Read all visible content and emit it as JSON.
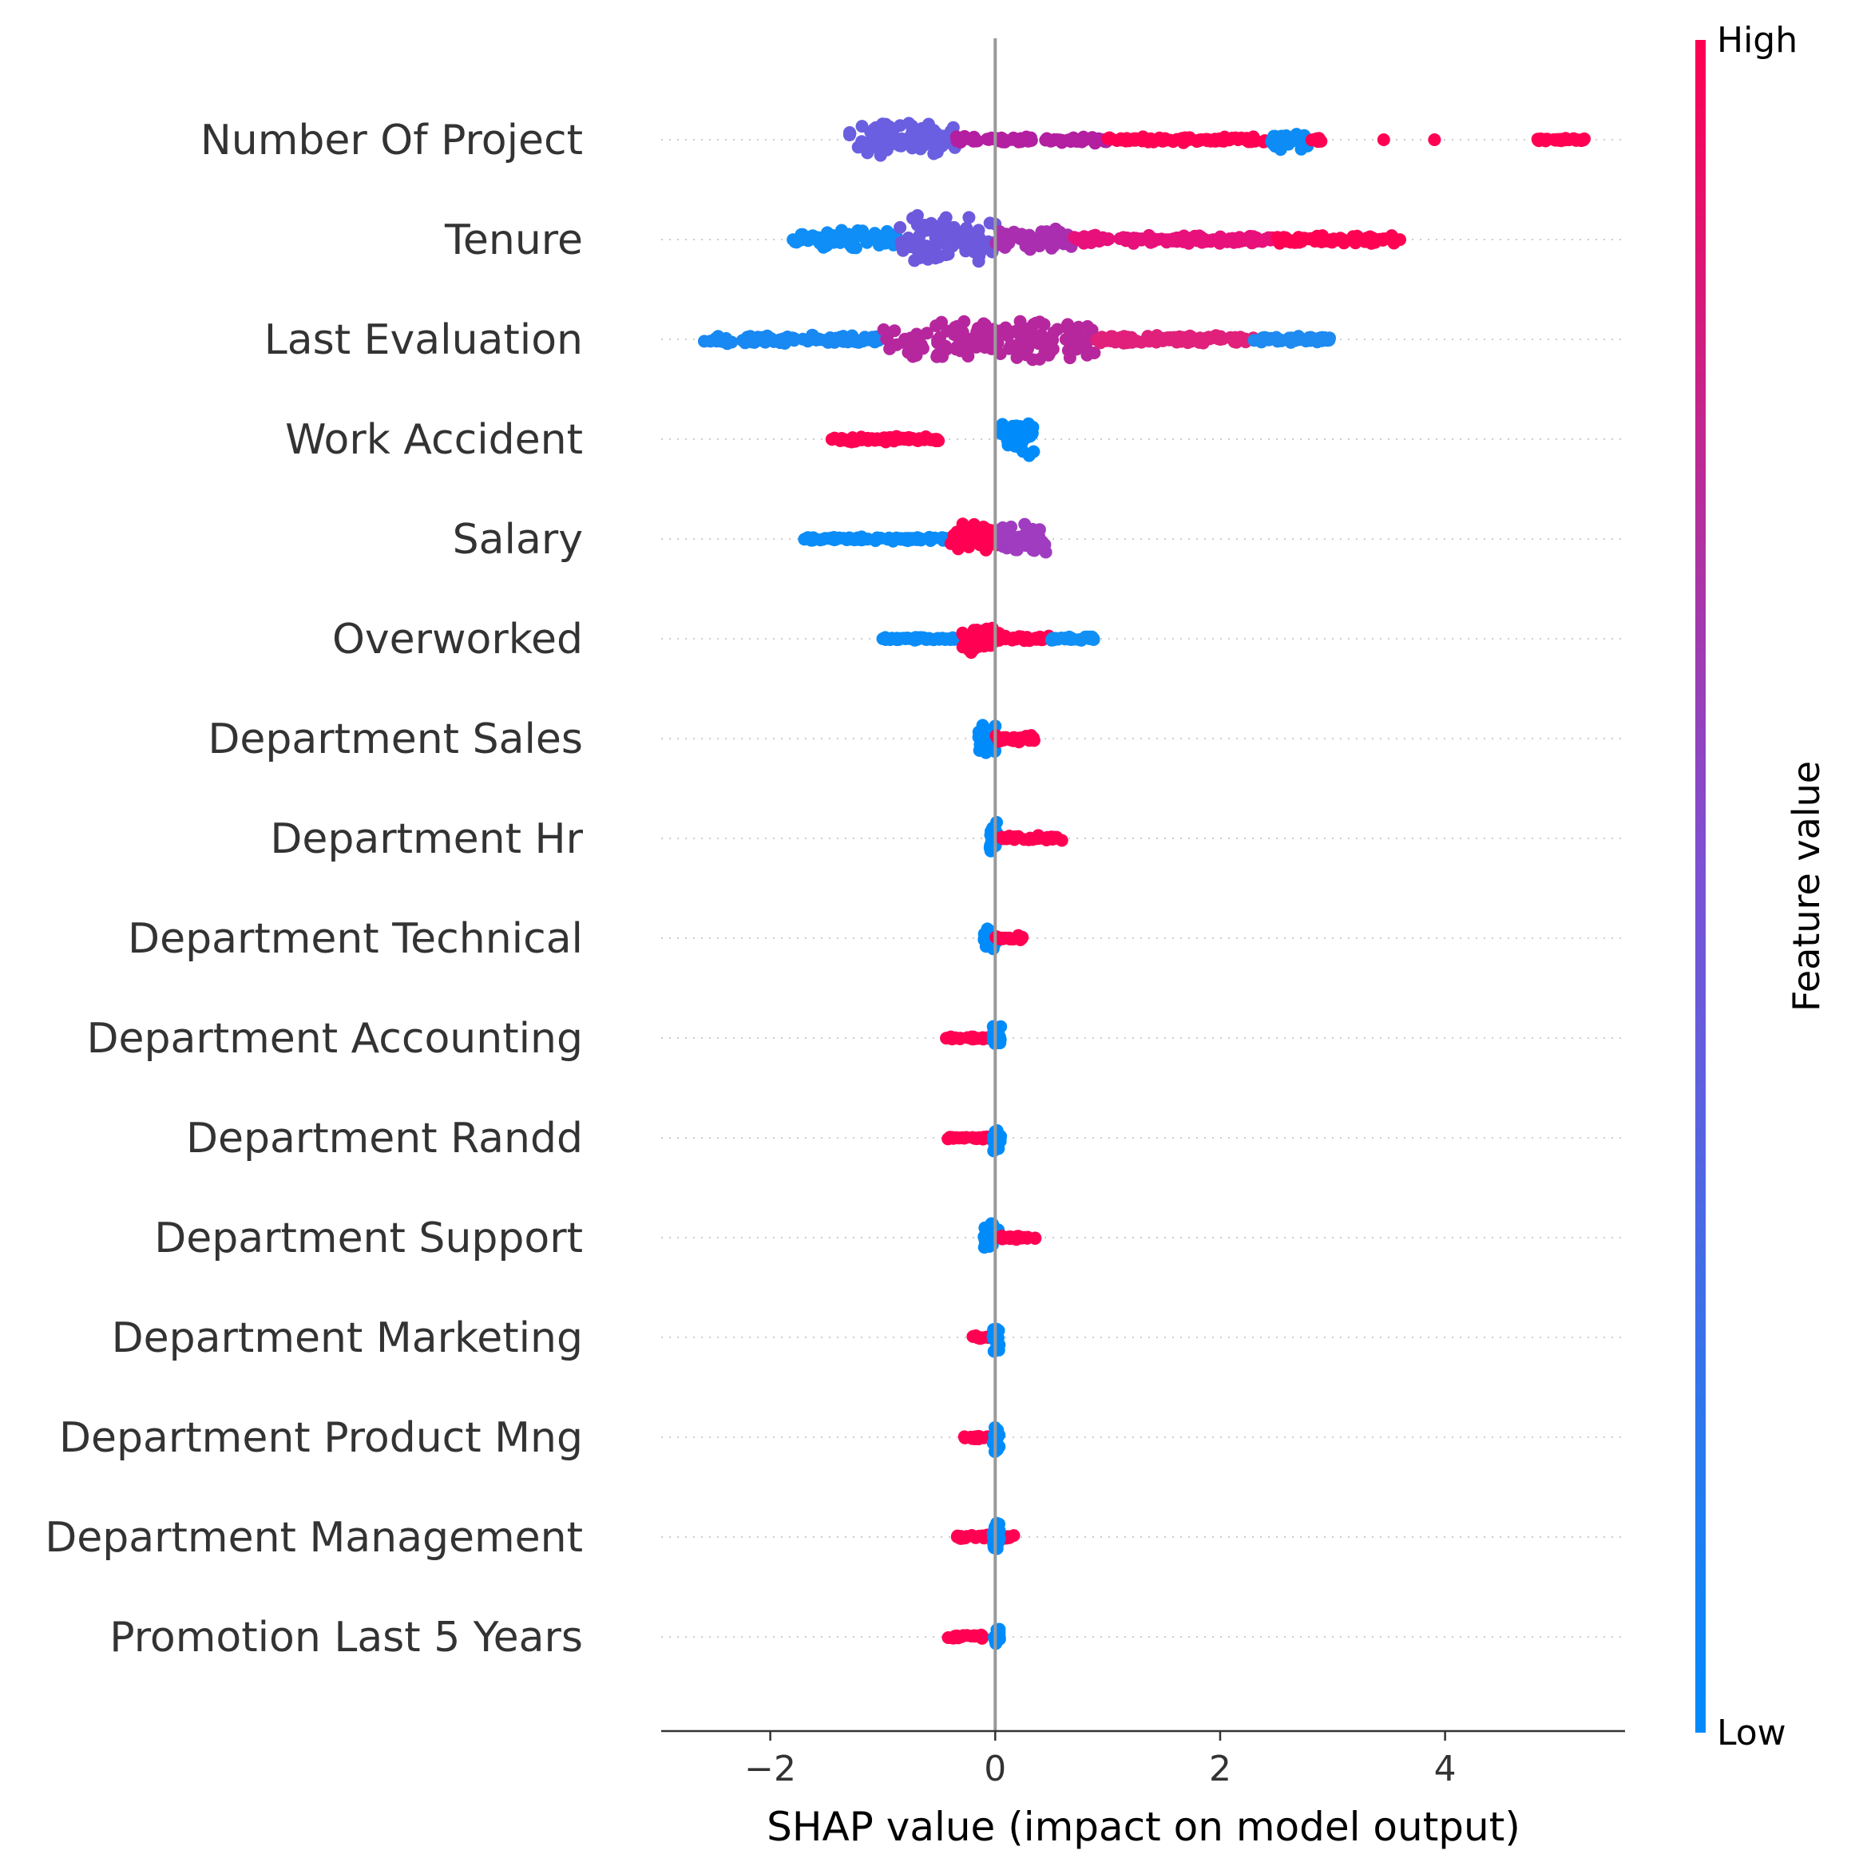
{
  "chart_data": {
    "type": "scatter",
    "subtype": "shap-beeswarm",
    "title": "",
    "xlabel": "SHAP value (impact on model output)",
    "ylabel": "",
    "xlim": [
      -2.97,
      5.6
    ],
    "xticks": [
      -2,
      0,
      2,
      4
    ],
    "xtick_labels": [
      "−2",
      "0",
      "2",
      "4"
    ],
    "grid": "dotted row guides",
    "zero_line": 0,
    "colors": {
      "low": "#008bfb",
      "high": "#ff0052",
      "mid": "#7a52d6"
    },
    "colorbar": {
      "title": "Feature value",
      "high_label": "High",
      "low_label": "Low"
    },
    "features": [
      {
        "name": "Number Of Project",
        "clusters": [
          {
            "from": -1.3,
            "to": -0.35,
            "color": "#6a5fe0",
            "spread": 0.55
          },
          {
            "from": -0.35,
            "to": 1.0,
            "color": "#b31fa0",
            "spread": 0.1
          },
          {
            "from": 1.0,
            "to": 2.4,
            "color": "#ff0052",
            "spread": 0.08
          },
          {
            "from": 2.45,
            "to": 2.8,
            "color": "#0d8cf5",
            "spread": 0.3
          },
          {
            "from": 2.8,
            "to": 2.9,
            "color": "#ff0052",
            "spread": 0.06
          },
          {
            "from": 3.45,
            "to": 3.45,
            "color": "#ff0052",
            "spread": 0.0
          },
          {
            "from": 3.9,
            "to": 3.9,
            "color": "#ff0052",
            "spread": 0.0
          },
          {
            "from": 4.8,
            "to": 5.25,
            "color": "#ff0052",
            "spread": 0.05
          }
        ]
      },
      {
        "name": "Tenure",
        "clusters": [
          {
            "from": -1.8,
            "to": -0.85,
            "color": "#0f8ef7",
            "spread": 0.28
          },
          {
            "from": -0.85,
            "to": 0.0,
            "color": "#6d59dc",
            "spread": 0.7
          },
          {
            "from": 0.0,
            "to": 0.7,
            "color": "#a92fb0",
            "spread": 0.32
          },
          {
            "from": 0.7,
            "to": 2.5,
            "color": "#e8107a",
            "spread": 0.12
          },
          {
            "from": 2.5,
            "to": 3.6,
            "color": "#ff0052",
            "spread": 0.12
          }
        ]
      },
      {
        "name": "Last Evaluation",
        "clusters": [
          {
            "from": -2.6,
            "to": -1.0,
            "color": "#1888f2",
            "spread": 0.12
          },
          {
            "from": -1.0,
            "to": 0.9,
            "color": "#b6279e",
            "spread": 0.6
          },
          {
            "from": 0.9,
            "to": 2.3,
            "color": "#e0207a",
            "spread": 0.12
          },
          {
            "from": 2.3,
            "to": 3.0,
            "color": "#1f8af0",
            "spread": 0.1
          }
        ]
      },
      {
        "name": "Work Accident",
        "clusters": [
          {
            "from": -1.5,
            "to": -0.5,
            "color": "#ff0052",
            "spread": 0.08
          },
          {
            "from": 0.05,
            "to": 0.35,
            "color": "#008bfb",
            "spread": 0.5
          }
        ]
      },
      {
        "name": "Salary",
        "clusters": [
          {
            "from": -1.7,
            "to": -0.4,
            "color": "#0a8df8",
            "spread": 0.06
          },
          {
            "from": -0.4,
            "to": 0.05,
            "color": "#ff0052",
            "spread": 0.45
          },
          {
            "from": 0.05,
            "to": 0.45,
            "color": "#a03cc0",
            "spread": 0.45
          }
        ]
      },
      {
        "name": "Overworked",
        "clusters": [
          {
            "from": -1.0,
            "to": -0.3,
            "color": "#0a8df8",
            "spread": 0.05
          },
          {
            "from": -0.3,
            "to": 0.05,
            "color": "#ff0052",
            "spread": 0.4
          },
          {
            "from": 0.05,
            "to": 0.5,
            "color": "#ff0052",
            "spread": 0.08
          },
          {
            "from": 0.5,
            "to": 0.9,
            "color": "#1090f5",
            "spread": 0.06
          }
        ]
      },
      {
        "name": "Department Sales",
        "clusters": [
          {
            "from": -0.15,
            "to": 0.0,
            "color": "#008bfb",
            "spread": 0.45
          },
          {
            "from": 0.0,
            "to": 0.38,
            "color": "#ff0052",
            "spread": 0.1
          }
        ]
      },
      {
        "name": "Department Hr",
        "clusters": [
          {
            "from": -0.05,
            "to": 0.02,
            "color": "#008bfb",
            "spread": 0.45
          },
          {
            "from": 0.05,
            "to": 0.6,
            "color": "#ff0052",
            "spread": 0.08
          }
        ]
      },
      {
        "name": "Department Technical",
        "clusters": [
          {
            "from": -0.1,
            "to": 0.02,
            "color": "#008bfb",
            "spread": 0.4
          },
          {
            "from": 0.0,
            "to": 0.25,
            "color": "#ff0052",
            "spread": 0.08
          }
        ]
      },
      {
        "name": "Department Accounting",
        "clusters": [
          {
            "from": -0.45,
            "to": -0.05,
            "color": "#ff0052",
            "spread": 0.04
          },
          {
            "from": -0.02,
            "to": 0.05,
            "color": "#008bfb",
            "spread": 0.4
          }
        ]
      },
      {
        "name": "Department Randd",
        "clusters": [
          {
            "from": -0.42,
            "to": -0.05,
            "color": "#ff0052",
            "spread": 0.04
          },
          {
            "from": -0.02,
            "to": 0.05,
            "color": "#008bfb",
            "spread": 0.4
          }
        ]
      },
      {
        "name": "Department Support",
        "clusters": [
          {
            "from": -0.1,
            "to": 0.03,
            "color": "#008bfb",
            "spread": 0.4
          },
          {
            "from": 0.03,
            "to": 0.36,
            "color": "#ff0052",
            "spread": 0.06
          }
        ]
      },
      {
        "name": "Department Marketing",
        "clusters": [
          {
            "from": -0.25,
            "to": -0.05,
            "color": "#ff0052",
            "spread": 0.05
          },
          {
            "from": -0.02,
            "to": 0.04,
            "color": "#008bfb",
            "spread": 0.4
          }
        ]
      },
      {
        "name": "Department Product Mng",
        "clusters": [
          {
            "from": -0.3,
            "to": -0.02,
            "color": "#ff0052",
            "spread": 0.05
          },
          {
            "from": -0.02,
            "to": 0.04,
            "color": "#008bfb",
            "spread": 0.4
          }
        ]
      },
      {
        "name": "Department Management",
        "clusters": [
          {
            "from": -0.35,
            "to": 0.17,
            "color": "#ff0052",
            "spread": 0.06
          },
          {
            "from": -0.02,
            "to": 0.04,
            "color": "#008bfb",
            "spread": 0.4
          }
        ]
      },
      {
        "name": "Promotion Last 5 Years",
        "clusters": [
          {
            "from": -0.42,
            "to": -0.1,
            "color": "#ff0052",
            "spread": 0.05
          },
          {
            "from": -0.02,
            "to": 0.04,
            "color": "#008bfb",
            "spread": 0.4
          }
        ]
      }
    ]
  }
}
